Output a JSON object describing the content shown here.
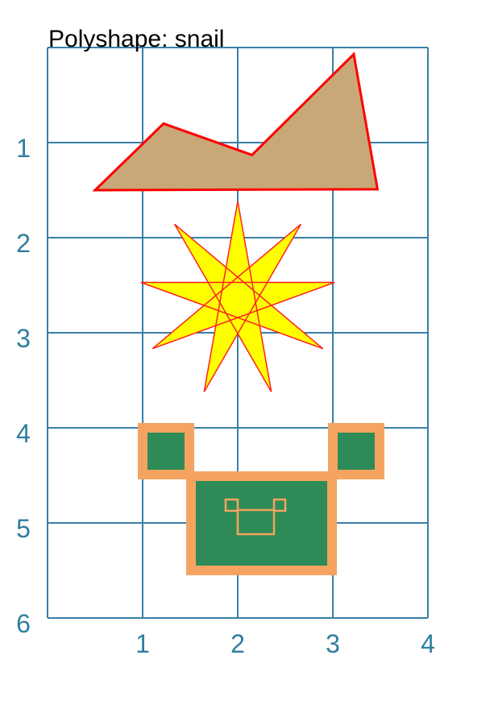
{
  "title": "Polyshape: snail",
  "grid": {
    "x_range": [
      0,
      4
    ],
    "y_range": [
      0,
      6
    ],
    "x_ticks": [
      "1",
      "2",
      "3",
      "4"
    ],
    "y_ticks": [
      "1",
      "2",
      "3",
      "4",
      "5",
      "6"
    ],
    "line_color": "#3a7fa8"
  },
  "shapes": {
    "shell": {
      "fill": "#c9a878",
      "stroke": "#ff0000",
      "points": [
        [
          0.5,
          1.5
        ],
        [
          1.22,
          0.8
        ],
        [
          2.15,
          1.13
        ],
        [
          3.22,
          0.07
        ],
        [
          3.47,
          1.49
        ]
      ]
    },
    "star": {
      "fill": "#ffff00",
      "stroke": "#ff2020",
      "center": [
        2.0,
        2.65
      ],
      "spikes": 9
    },
    "robot": {
      "fill": "#2e8b57",
      "stroke": "#f4a460",
      "left_ear": [
        1.0,
        3.95,
        1.55,
        4.5
      ],
      "right_ear": [
        3.0,
        3.95,
        3.55,
        4.5
      ],
      "body": [
        1.55,
        4.5,
        3.05,
        5.55
      ]
    }
  }
}
